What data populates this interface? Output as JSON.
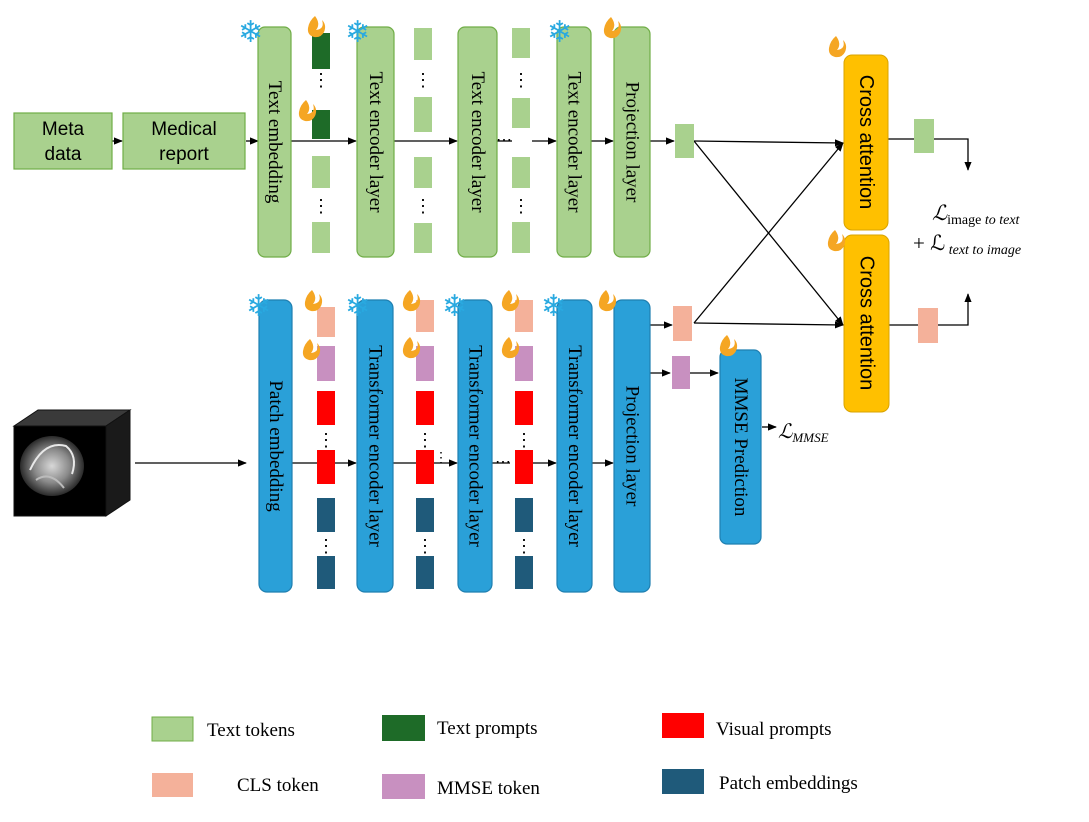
{
  "inputs": {
    "meta_data": [
      "Meta",
      "data"
    ],
    "medical_report": [
      "Medical",
      "report"
    ]
  },
  "text_branch": {
    "text_embedding": "Text embedding",
    "encoder_layers": [
      "Text encoder layer",
      "Text encoder layer",
      "Text encoder layer"
    ],
    "projection": "Projection layer"
  },
  "image_branch": {
    "patch_embedding": "Patch embedding",
    "encoder_layers": [
      "Transformer encoder layer",
      "Transformer encoder layer",
      "Transformer encoder layer"
    ],
    "projection": "Projection layer",
    "mmse_prediction": "MMSE Prediction"
  },
  "cross_attention": [
    "Cross attention",
    "Cross attention"
  ],
  "losses": {
    "mmse_symbol": "ℒ",
    "mmse_sub": "MMSE",
    "contrastive_line1_symbol": "ℒ",
    "contrastive_line1_sub_a": "image",
    "contrastive_line1_sub_b": " to text",
    "contrastive_line2_prefix": "+ ℒ",
    "contrastive_line2_sub": " text to image"
  },
  "legend": {
    "text_tokens": "Text tokens",
    "text_prompts": "Text prompts",
    "visual_prompts": "Visual prompts",
    "cls_token": "CLS token",
    "mmse_token": "MMSE token",
    "patch_embeddings": "Patch embeddings"
  },
  "colors": {
    "text_token": "#a9d18e",
    "text_prompt": "#1e6b28",
    "visual_prompt": "#ff0000",
    "cls_token": "#f4b19a",
    "mmse_token": "#c890c0",
    "patch_embedding": "#1f5a7a",
    "green_box_fill": "#a9d18e",
    "green_box_stroke": "#70ad47",
    "blue_box_fill": "#2aa0d8",
    "blue_box_stroke": "#1f7fb0",
    "cross_attention_fill": "#ffc000",
    "frozen_icon": "#29a9e0",
    "trainable_icon": "#f5a623"
  },
  "icons": {
    "frozen": "snowflake-icon",
    "trainable": "flame-icon"
  }
}
